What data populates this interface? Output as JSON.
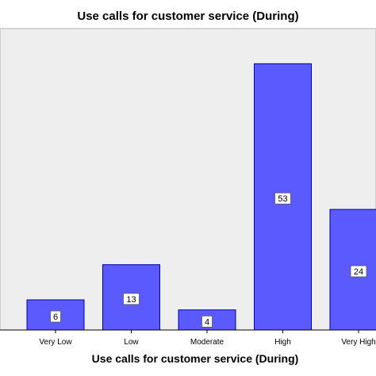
{
  "chart_data": {
    "type": "bar",
    "title": "Use calls for customer service (During)",
    "xlabel": "Use calls for customer service (During)",
    "ylabel": "",
    "categories": [
      "Very Low",
      "Low",
      "Moderate",
      "High",
      "Very High"
    ],
    "values": [
      6,
      13,
      4,
      53,
      24
    ],
    "ylim": [
      0,
      60
    ],
    "grid": false,
    "legend": "none",
    "bar_color": "#5a5aff",
    "bar_edge_color": "#0000aa",
    "plot_background": "#eeeeee"
  }
}
